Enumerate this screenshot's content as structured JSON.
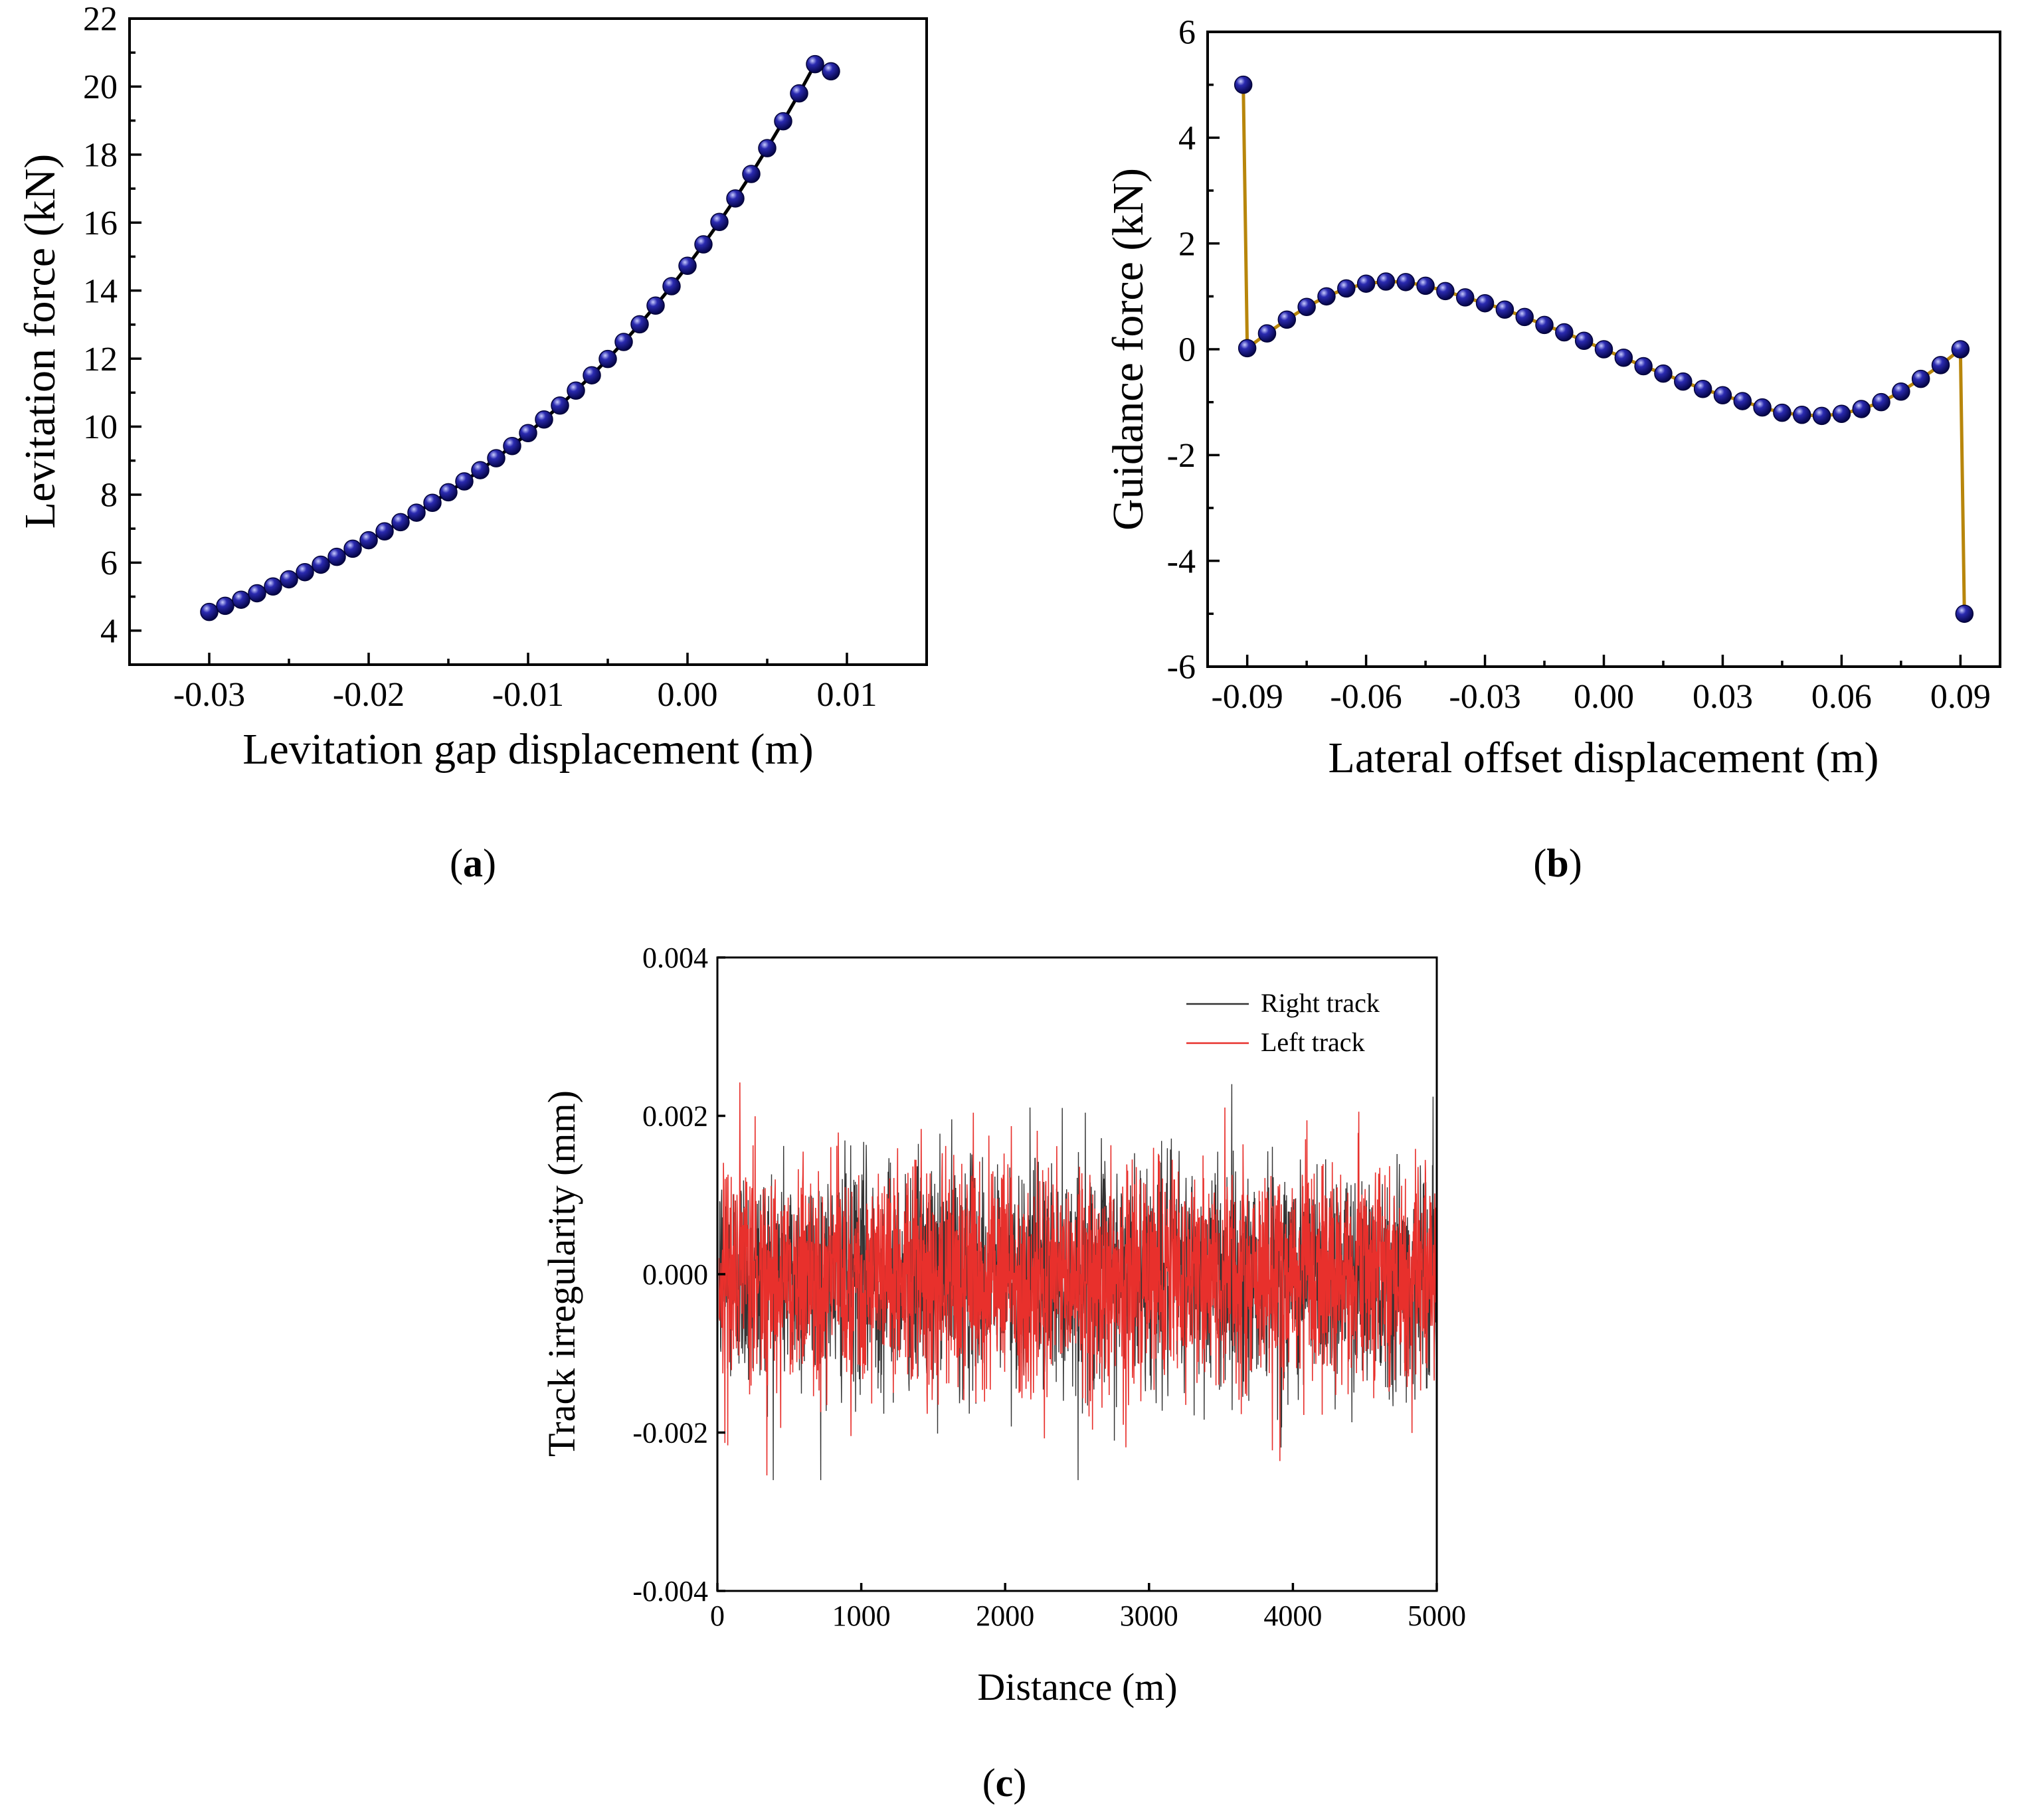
{
  "chart_data": [
    {
      "id": "a",
      "type": "scatter",
      "panel_label": "a",
      "xlabel": "Levitation gap displacement (m)",
      "ylabel": "Levitation force (kN)",
      "xlim": [
        -0.035,
        0.015
      ],
      "ylim": [
        3,
        22
      ],
      "xticks": [
        -0.03,
        -0.02,
        -0.01,
        0.0,
        0.01
      ],
      "xtick_labels": [
        "-0.03",
        "-0.02",
        "-0.01",
        "0.00",
        "0.01"
      ],
      "yticks": [
        4,
        6,
        8,
        10,
        12,
        14,
        16,
        18,
        20,
        22
      ],
      "ytick_labels": [
        "4",
        "6",
        "8",
        "10",
        "12",
        "14",
        "16",
        "18",
        "20",
        "22"
      ],
      "series": [
        {
          "name": "Levitation force",
          "line_color": "#000000",
          "marker_color": "#0a0a7a",
          "x": [
            -0.03,
            -0.029,
            -0.028,
            -0.027,
            -0.026,
            -0.025,
            -0.024,
            -0.023,
            -0.022,
            -0.021,
            -0.02,
            -0.019,
            -0.018,
            -0.017,
            -0.016,
            -0.015,
            -0.014,
            -0.013,
            -0.012,
            -0.011,
            -0.01,
            -0.009,
            -0.008,
            -0.007,
            -0.006,
            -0.005,
            -0.004,
            -0.003,
            -0.002,
            -0.001,
            0.0,
            0.001,
            0.002,
            0.003,
            0.004,
            0.005,
            0.006,
            0.007,
            0.008,
            0.009
          ],
          "y": [
            4.55,
            4.73,
            4.91,
            5.1,
            5.3,
            5.51,
            5.72,
            5.94,
            6.17,
            6.41,
            6.66,
            6.92,
            7.19,
            7.47,
            7.76,
            8.07,
            8.39,
            8.72,
            9.07,
            9.43,
            9.81,
            10.21,
            10.62,
            11.06,
            11.51,
            11.99,
            12.49,
            13.01,
            13.56,
            14.13,
            14.73,
            15.36,
            16.02,
            16.71,
            17.43,
            18.19,
            18.98,
            19.8,
            20.66,
            20.45
          ]
        }
      ]
    },
    {
      "id": "b",
      "type": "scatter",
      "panel_label": "b",
      "xlabel": "Lateral offset displacement (m)",
      "ylabel": "Guidance force (kN)",
      "xlim": [
        -0.1,
        0.1
      ],
      "ylim": [
        -6,
        6
      ],
      "xticks": [
        -0.09,
        -0.06,
        -0.03,
        0.0,
        0.03,
        0.06,
        0.09
      ],
      "xtick_labels": [
        "-0.09",
        "-0.06",
        "-0.03",
        "0.00",
        "0.03",
        "0.06",
        "0.09"
      ],
      "yticks": [
        -6,
        -4,
        -2,
        0,
        2,
        4,
        6
      ],
      "ytick_labels": [
        "-6",
        "-4",
        "-2",
        "0",
        "2",
        "4",
        "6"
      ],
      "series": [
        {
          "name": "Guidance force",
          "line_color": "#b8860b",
          "marker_color": "#0a0a7a",
          "x": [
            -0.091,
            -0.09,
            -0.085,
            -0.08,
            -0.075,
            -0.07,
            -0.065,
            -0.06,
            -0.055,
            -0.05,
            -0.045,
            -0.04,
            -0.035,
            -0.03,
            -0.025,
            -0.02,
            -0.015,
            -0.01,
            -0.005,
            0.0,
            0.005,
            0.01,
            0.015,
            0.02,
            0.025,
            0.03,
            0.035,
            0.04,
            0.045,
            0.05,
            0.055,
            0.06,
            0.065,
            0.07,
            0.075,
            0.08,
            0.085,
            0.09,
            0.091
          ],
          "y": [
            5.0,
            0.02,
            0.3,
            0.56,
            0.8,
            1.0,
            1.15,
            1.24,
            1.28,
            1.27,
            1.2,
            1.1,
            0.98,
            0.87,
            0.75,
            0.61,
            0.46,
            0.32,
            0.16,
            0.0,
            -0.16,
            -0.32,
            -0.46,
            -0.61,
            -0.75,
            -0.87,
            -0.98,
            -1.1,
            -1.2,
            -1.24,
            -1.26,
            -1.22,
            -1.13,
            -1.0,
            -0.8,
            -0.56,
            -0.3,
            0.0,
            -5.0
          ]
        }
      ]
    },
    {
      "id": "c",
      "type": "line",
      "panel_label": "c",
      "xlabel": "Distance (m)",
      "ylabel": "Track irregularity (mm)",
      "xlim": [
        0,
        5000
      ],
      "ylim": [
        -0.004,
        0.004
      ],
      "xticks": [
        0,
        1000,
        2000,
        3000,
        4000,
        5000
      ],
      "xtick_labels": [
        "0",
        "1000",
        "2000",
        "3000",
        "4000",
        "5000"
      ],
      "yticks": [
        -0.004,
        -0.002,
        0.0,
        0.002,
        0.004
      ],
      "ytick_labels": [
        "-0.004",
        "-0.002",
        "0.000",
        "0.002",
        "0.004"
      ],
      "legend_position": "top-right",
      "series": [
        {
          "name": "Right track",
          "color": "#333333",
          "std": 0.0007,
          "max_abs": 0.0026,
          "samples": 2500
        },
        {
          "name": "Left track",
          "color": "#e8302c",
          "std": 0.0007,
          "max_abs": 0.0027,
          "samples": 2500
        }
      ]
    }
  ]
}
